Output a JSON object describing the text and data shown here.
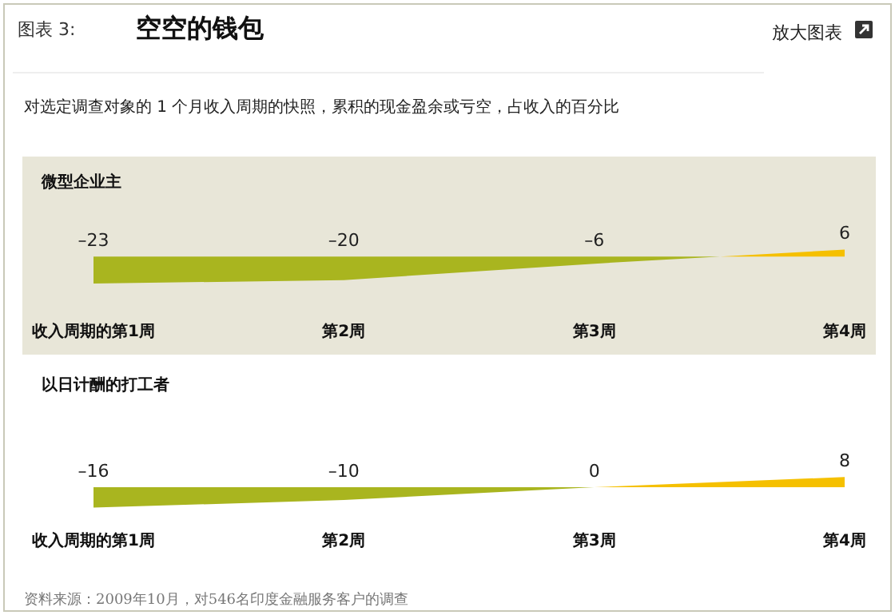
{
  "chart_data": [
    {
      "type": "other",
      "title": "空空的钱包",
      "subtitle": "对选定调查对象的 1 个月收入周期的快照，累积的现金盈余或亏空，占收入的百分比",
      "annotations": [
        "图表 3:",
        "放大图表"
      ]
    },
    {
      "type": "area",
      "title": "微型企业主",
      "categories": [
        "收入周期的第1周",
        "第2周",
        "第3周",
        "第4周"
      ],
      "series": [
        {
          "colors": [
            "#a9b51f",
            "#a9b51f",
            "#a9b51f",
            "#f5c000"
          ],
          "values": [
            -23,
            -20,
            -6,
            6
          ],
          "value_labels": [
            "–23",
            "–20",
            "–6",
            "6"
          ]
        }
      ],
      "legend": false,
      "grid": false
    },
    {
      "type": "area",
      "title": "以日计酬的打工者",
      "categories": [
        "收入周期的第1周",
        "第2周",
        "第3周",
        "第4周"
      ],
      "series": [
        {
          "colors": [
            "#a9b51f",
            "#a9b51f",
            "#a9b51f",
            "#f5c000"
          ],
          "values": [
            -16,
            -10,
            0,
            8
          ],
          "value_labels": [
            "–16",
            "–10",
            "0",
            "8"
          ]
        }
      ],
      "legend": false,
      "grid": false,
      "annotations": [
        "资料来源：2009年10月，对546名印度金融服务客户的调查"
      ]
    }
  ]
}
